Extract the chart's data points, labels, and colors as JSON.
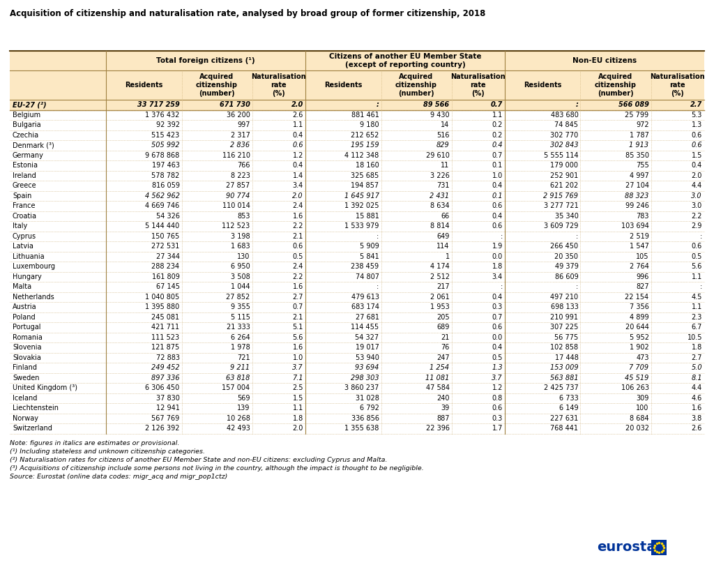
{
  "title": "Acquisition of citizenship and naturalisation rate, analysed by broad group of former citizenship, 2018",
  "header_bg": "#fce8c3",
  "rows": [
    [
      "EU-27 (²)",
      "33 717 259",
      "671 730",
      "2.0",
      ":",
      "89 566",
      "0.7",
      ":",
      "566 089",
      "2.7"
    ],
    [
      "Belgium",
      "1 376 432",
      "36 200",
      "2.6",
      "881 461",
      "9 430",
      "1.1",
      "483 680",
      "25 799",
      "5.3"
    ],
    [
      "Bulgaria",
      "92 392",
      "997",
      "1.1",
      "9 180",
      "14",
      "0.2",
      "74 845",
      "972",
      "1.3"
    ],
    [
      "Czechia",
      "515 423",
      "2 317",
      "0.4",
      "212 652",
      "516",
      "0.2",
      "302 770",
      "1 787",
      "0.6"
    ],
    [
      "Denmark (³)",
      "505 992",
      "2 836",
      "0.6",
      "195 159",
      "829",
      "0.4",
      "302 843",
      "1 913",
      "0.6"
    ],
    [
      "Germany",
      "9 678 868",
      "116 210",
      "1.2",
      "4 112 348",
      "29 610",
      "0.7",
      "5 555 114",
      "85 350",
      "1.5"
    ],
    [
      "Estonia",
      "197 463",
      "766",
      "0.4",
      "18 160",
      "11",
      "0.1",
      "179 000",
      "755",
      "0.4"
    ],
    [
      "Ireland",
      "578 782",
      "8 223",
      "1.4",
      "325 685",
      "3 226",
      "1.0",
      "252 901",
      "4 997",
      "2.0"
    ],
    [
      "Greece",
      "816 059",
      "27 857",
      "3.4",
      "194 857",
      "731",
      "0.4",
      "621 202",
      "27 104",
      "4.4"
    ],
    [
      "Spain",
      "4 562 962",
      "90 774",
      "2.0",
      "1 645 917",
      "2 431",
      "0.1",
      "2 915 769",
      "88 323",
      "3.0"
    ],
    [
      "France",
      "4 669 746",
      "110 014",
      "2.4",
      "1 392 025",
      "8 634",
      "0.6",
      "3 277 721",
      "99 246",
      "3.0"
    ],
    [
      "Croatia",
      "54 326",
      "853",
      "1.6",
      "15 881",
      "66",
      "0.4",
      "35 340",
      "783",
      "2.2"
    ],
    [
      "Italy",
      "5 144 440",
      "112 523",
      "2.2",
      "1 533 979",
      "8 814",
      "0.6",
      "3 609 729",
      "103 694",
      "2.9"
    ],
    [
      "Cyprus",
      "150 765",
      "3 198",
      "2.1",
      ":",
      "649",
      ":",
      ":",
      "2 519",
      ":"
    ],
    [
      "Latvia",
      "272 531",
      "1 683",
      "0.6",
      "5 909",
      "114",
      "1.9",
      "266 450",
      "1 547",
      "0.6"
    ],
    [
      "Lithuania",
      "27 344",
      "130",
      "0.5",
      "5 841",
      "1",
      "0.0",
      "20 350",
      "105",
      "0.5"
    ],
    [
      "Luxembourg",
      "288 234",
      "6 950",
      "2.4",
      "238 459",
      "4 174",
      "1.8",
      "49 379",
      "2 764",
      "5.6"
    ],
    [
      "Hungary",
      "161 809",
      "3 508",
      "2.2",
      "74 807",
      "2 512",
      "3.4",
      "86 609",
      "996",
      "1.1"
    ],
    [
      "Malta",
      "67 145",
      "1 044",
      "1.6",
      ":",
      "217",
      ":",
      ":",
      "827",
      ":"
    ],
    [
      "Netherlands",
      "1 040 805",
      "27 852",
      "2.7",
      "479 613",
      "2 061",
      "0.4",
      "497 210",
      "22 154",
      "4.5"
    ],
    [
      "Austria",
      "1 395 880",
      "9 355",
      "0.7",
      "683 174",
      "1 953",
      "0.3",
      "698 133",
      "7 356",
      "1.1"
    ],
    [
      "Poland",
      "245 081",
      "5 115",
      "2.1",
      "27 681",
      "205",
      "0.7",
      "210 991",
      "4 899",
      "2.3"
    ],
    [
      "Portugal",
      "421 711",
      "21 333",
      "5.1",
      "114 455",
      "689",
      "0.6",
      "307 225",
      "20 644",
      "6.7"
    ],
    [
      "Romania",
      "111 523",
      "6 264",
      "5.6",
      "54 327",
      "21",
      "0.0",
      "56 775",
      "5 952",
      "10.5"
    ],
    [
      "Slovenia",
      "121 875",
      "1 978",
      "1.6",
      "19 017",
      "76",
      "0.4",
      "102 858",
      "1 902",
      "1.8"
    ],
    [
      "Slovakia",
      "72 883",
      "721",
      "1.0",
      "53 940",
      "247",
      "0.5",
      "17 448",
      "473",
      "2.7"
    ],
    [
      "Finland",
      "249 452",
      "9 211",
      "3.7",
      "93 694",
      "1 254",
      "1.3",
      "153 009",
      "7 709",
      "5.0"
    ],
    [
      "Sweden",
      "897 336",
      "63 818",
      "7.1",
      "298 303",
      "11 081",
      "3.7",
      "563 881",
      "45 519",
      "8.1"
    ],
    [
      "United Kingdom (³)",
      "6 306 450",
      "157 004",
      "2.5",
      "3 860 237",
      "47 584",
      "1.2",
      "2 425 737",
      "106 263",
      "4.4"
    ],
    [
      "Iceland",
      "37 830",
      "569",
      "1.5",
      "31 028",
      "240",
      "0.8",
      "6 733",
      "309",
      "4.6"
    ],
    [
      "Liechtenstein",
      "12 941",
      "139",
      "1.1",
      "6 792",
      "39",
      "0.6",
      "6 149",
      "100",
      "1.6"
    ],
    [
      "Norway",
      "567 769",
      "10 268",
      "1.8",
      "336 856",
      "887",
      "0.3",
      "227 631",
      "8 684",
      "3.8"
    ],
    [
      "Switzerland",
      "2 126 392",
      "42 493",
      "2.0",
      "1 355 638",
      "22 396",
      "1.7",
      "768 441",
      "20 032",
      "2.6"
    ]
  ],
  "italic_data_rows": [
    4,
    9,
    26,
    27
  ],
  "notes": [
    "Note: figures in italics are estimates or provisional.",
    "(¹) Including stateless and unknown citizenship categories.",
    "(²) Naturalisation rates for citizens of another EU Member State and non-EU citizens: excluding Cyprus and Malta.",
    "(³) Acquisitions of citizenship include some persons not living in the country, although the impact is thought to be negligible.",
    "Source: Eurostat (online data codes: migr_acq and migr_pop1ctz)"
  ]
}
